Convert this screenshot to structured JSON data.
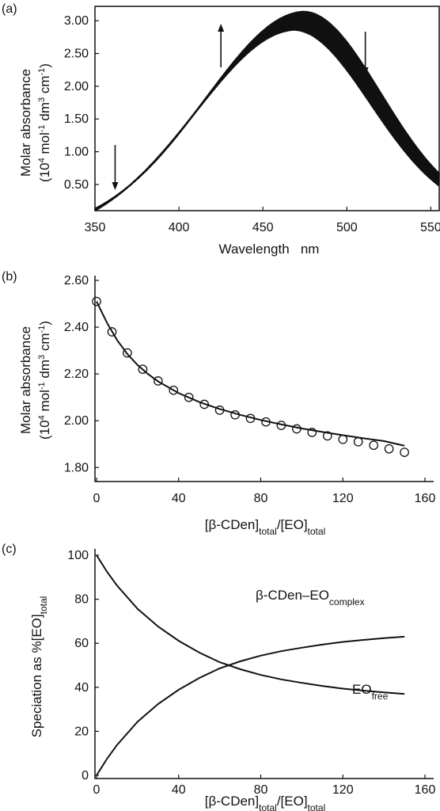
{
  "chart_data": [
    {
      "panel": "(a)",
      "type": "line",
      "xlabel": "Wavelength   nm",
      "ylabel_line1": "Molar absorbance",
      "ylabel_line2_parts": [
        "(10",
        "4",
        " mol",
        "-1",
        " dm",
        "3",
        " cm",
        "-1",
        ")"
      ],
      "xlim": [
        350,
        555
      ],
      "ylim": [
        0.1,
        3.22
      ],
      "xticks": [
        "350",
        "400",
        "450",
        "500",
        "550"
      ],
      "xtick_values": [
        350,
        400,
        450,
        500,
        550
      ],
      "yticks": [
        "0.50",
        "1.00",
        "1.50",
        "2.00",
        "2.50",
        "3.00"
      ],
      "ytick_values": [
        0.5,
        1.0,
        1.5,
        2.0,
        2.5,
        3.0
      ],
      "band_family": {
        "count": 21,
        "peak_wavelength_start": 474,
        "peak_wavelength_end": 468,
        "peak_absorbance_start": 3.14,
        "peak_absorbance_end": 2.86,
        "absorbance_at_350_start": 0.13,
        "absorbance_at_350_end": 0.1
      },
      "arrows": [
        {
          "x": 362,
          "direction": "down"
        },
        {
          "x": 425,
          "direction": "up"
        },
        {
          "x": 511,
          "direction": "down"
        }
      ]
    },
    {
      "panel": "(b)",
      "type": "scatter",
      "xlabel_parts": [
        "[β-CDen]",
        "total",
        "/[EO]",
        "total"
      ],
      "ylabel_line1": "Molar absorbance",
      "ylabel_line2_parts": [
        "(10",
        "4",
        " mol",
        "-1",
        " dm",
        "3",
        " cm",
        "-1",
        ")"
      ],
      "xlim": [
        0,
        160
      ],
      "ylim": [
        1.74,
        2.6
      ],
      "xticks": [
        "0",
        "40",
        "80",
        "120",
        "160"
      ],
      "xtick_values": [
        0,
        40,
        80,
        120,
        160
      ],
      "yticks": [
        "1.80",
        "2.00",
        "2.20",
        "2.40",
        "2.60"
      ],
      "ytick_values": [
        1.8,
        2.0,
        2.2,
        2.4,
        2.6
      ],
      "points_x": [
        0,
        7.5,
        15,
        22.5,
        30,
        37.5,
        45,
        52.5,
        60,
        67.5,
        75,
        82.5,
        90,
        97.5,
        105,
        112.5,
        120,
        127.5,
        135,
        142.5,
        150
      ],
      "points_y": [
        2.51,
        2.38,
        2.29,
        2.22,
        2.17,
        2.13,
        2.1,
        2.07,
        2.045,
        2.025,
        2.01,
        1.995,
        1.98,
        1.965,
        1.95,
        1.935,
        1.92,
        1.91,
        1.895,
        1.88,
        1.865
      ],
      "fit_x": [
        0,
        5,
        10,
        15,
        20,
        25,
        30,
        40,
        50,
        60,
        70,
        80,
        90,
        100,
        110,
        120,
        130,
        140,
        150
      ],
      "fit_y": [
        2.51,
        2.42,
        2.345,
        2.285,
        2.238,
        2.2,
        2.168,
        2.118,
        2.08,
        2.05,
        2.025,
        2.003,
        1.984,
        1.967,
        1.952,
        1.938,
        1.925,
        1.913,
        1.893
      ]
    },
    {
      "panel": "(c)",
      "type": "line",
      "xlabel_parts": [
        "[β-CDen]",
        "total",
        "/[EO]",
        "total"
      ],
      "ylabel_parts": [
        "Speciation as %[EO]",
        "total"
      ],
      "xlim": [
        0,
        160
      ],
      "ylim": [
        0,
        100
      ],
      "xticks": [
        "0",
        "40",
        "80",
        "120",
        "160"
      ],
      "xtick_values": [
        0,
        40,
        80,
        120,
        160
      ],
      "yticks": [
        "0",
        "20",
        "40",
        "60",
        "80",
        "100"
      ],
      "ytick_values": [
        0,
        20,
        40,
        60,
        80,
        100
      ],
      "series": [
        {
          "label_parts": [
            "β-CDen–EO",
            "complex"
          ],
          "x": [
            0,
            5,
            10,
            20,
            30,
            40,
            50,
            60,
            70,
            80,
            90,
            100,
            110,
            120,
            130,
            140,
            150
          ],
          "y": [
            0,
            7.4,
            13.8,
            24.4,
            32.4,
            38.9,
            44.2,
            48.6,
            51.8,
            54.4,
            56.4,
            58.0,
            59.4,
            60.6,
            61.5,
            62.3,
            63.0
          ]
        },
        {
          "label_parts": [
            "EO",
            "free"
          ],
          "x": [
            0,
            5,
            10,
            20,
            30,
            40,
            50,
            60,
            70,
            80,
            90,
            100,
            110,
            120,
            130,
            140,
            150
          ],
          "y": [
            100,
            92.6,
            86.2,
            75.6,
            67.6,
            61.1,
            55.8,
            51.4,
            48.2,
            45.6,
            43.6,
            42.0,
            40.6,
            39.4,
            38.5,
            37.7,
            37.0
          ]
        }
      ]
    }
  ]
}
